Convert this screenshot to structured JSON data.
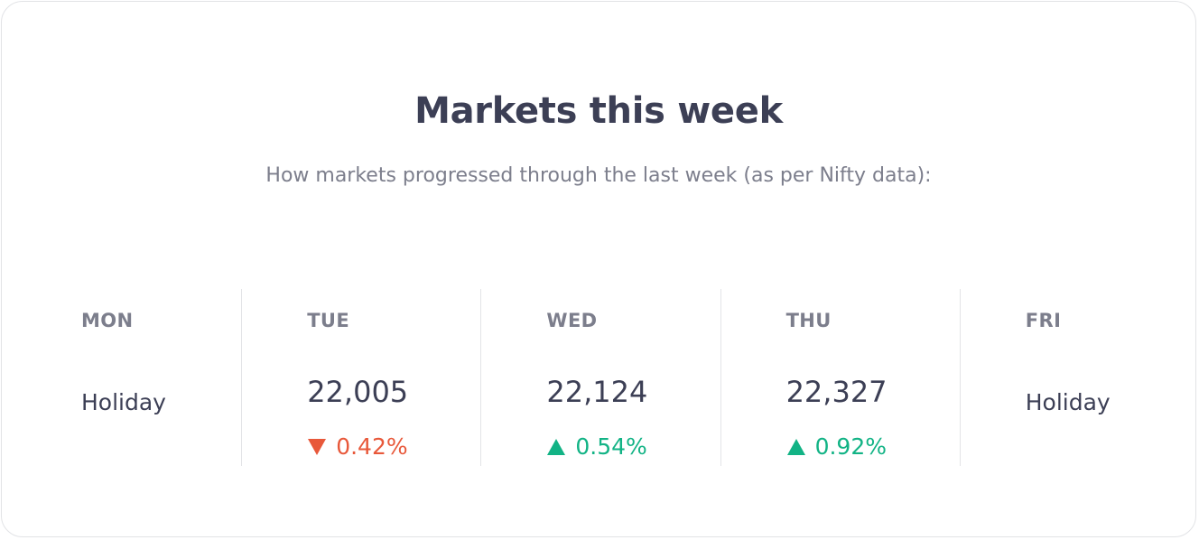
{
  "card": {
    "title": "Markets this week",
    "subtitle": "How markets progressed through the last week (as per Nifty data):"
  },
  "days": [
    {
      "label": "MON",
      "status": "Holiday"
    },
    {
      "label": "TUE",
      "value": "22,005",
      "change": "0.42%",
      "direction": "down",
      "icon": "triangle-down-icon"
    },
    {
      "label": "WED",
      "value": "22,124",
      "change": "0.54%",
      "direction": "up",
      "icon": "triangle-up-icon"
    },
    {
      "label": "THU",
      "value": "22,327",
      "change": "0.92%",
      "direction": "up",
      "icon": "triangle-up-icon"
    },
    {
      "label": "FRI",
      "status": "Holiday"
    }
  ],
  "colors": {
    "title": "#3c3f55",
    "muted": "#7c7e8c",
    "down": "#e8583a",
    "up": "#12b385",
    "divider": "#e3e4e7"
  }
}
